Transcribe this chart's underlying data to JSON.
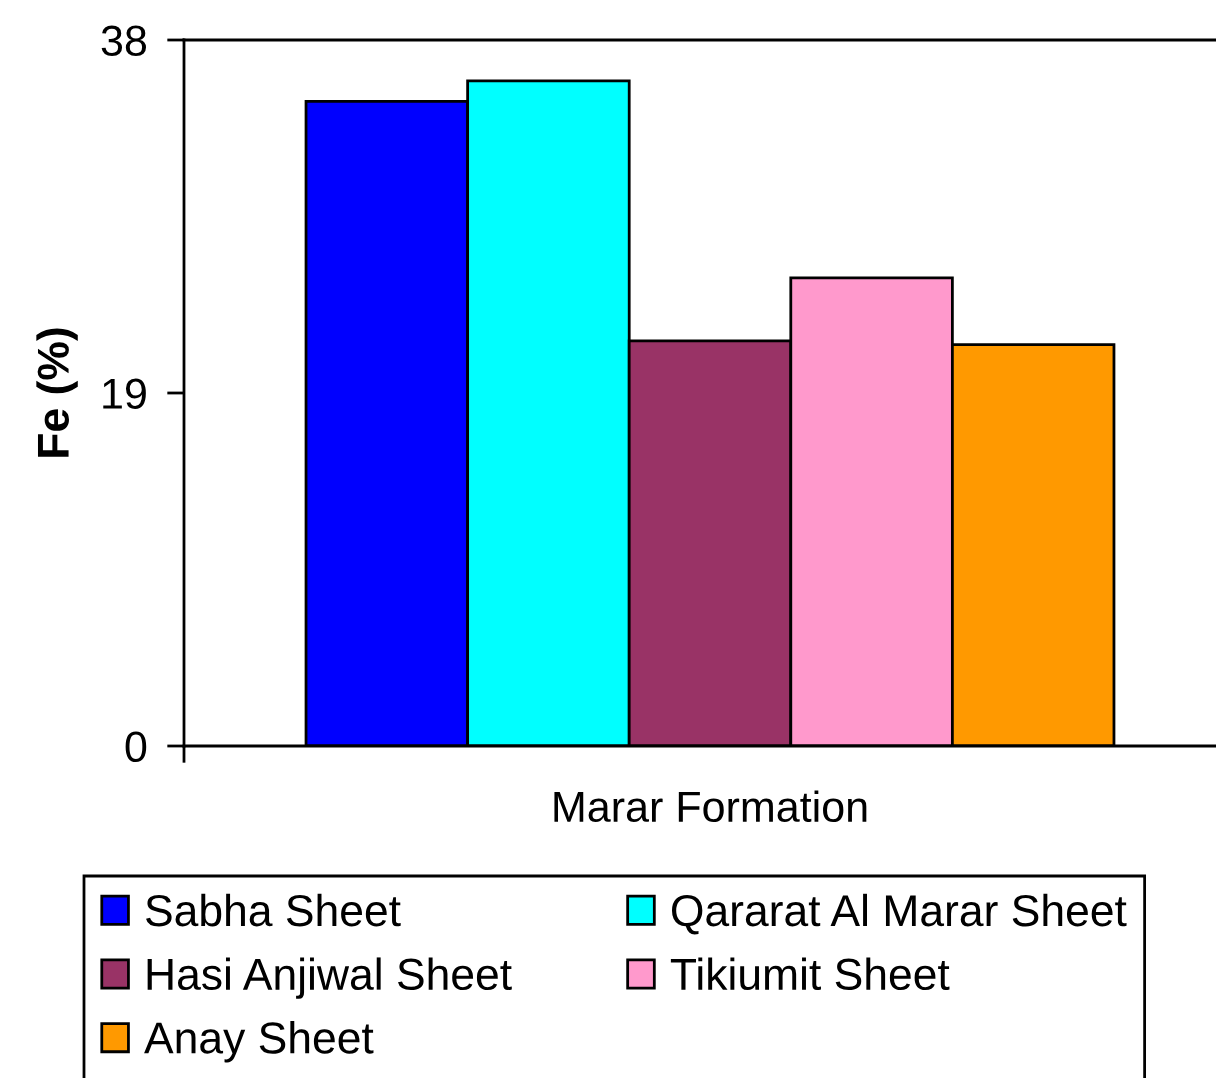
{
  "chart_data": {
    "type": "bar",
    "ylabel": "Fe (%)",
    "categories": [
      "Marar Formation"
    ],
    "series": [
      {
        "name": "Sabha Sheet",
        "color": "#0000ff",
        "values": [
          34.7
        ]
      },
      {
        "name": "Qararat Al Marar Sheet",
        "color": "#00ffff",
        "values": [
          35.8
        ]
      },
      {
        "name": "Hasi Anjiwal Sheet",
        "color": "#993366",
        "values": [
          21.8
        ]
      },
      {
        "name": "Tikiumit Sheet",
        "color": "#ff99cc",
        "values": [
          25.2
        ]
      },
      {
        "name": "Anay Sheet",
        "color": "#ff9900",
        "values": [
          21.6
        ]
      }
    ],
    "ylim": [
      0,
      38
    ],
    "yticks": [
      0,
      19,
      38
    ],
    "legend": "bottom"
  }
}
